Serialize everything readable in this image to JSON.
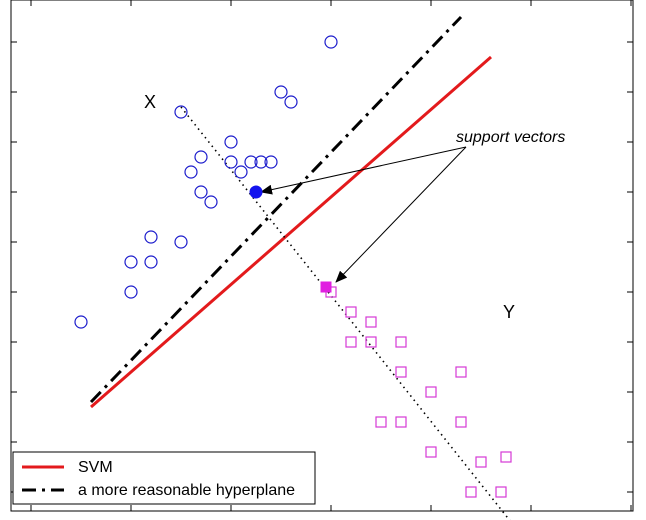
{
  "chart_data": {
    "type": "scatter",
    "title": "",
    "xlabel": "",
    "ylabel": "",
    "xlim": [
      0,
      6
    ],
    "ylim": [
      0,
      5
    ],
    "grid": false,
    "legend_position": "bottom-left",
    "class_labels": [
      {
        "text": "X",
        "x": 1.13,
        "y": 3.9
      },
      {
        "text": "Y",
        "x": 4.72,
        "y": 1.8
      }
    ],
    "annotation": {
      "text": "support vectors",
      "x": 4.25,
      "y": 3.55
    },
    "arrows": [
      {
        "from": [
          4.35,
          3.45
        ],
        "to": [
          2.3,
          3.0
        ]
      },
      {
        "from": [
          4.35,
          3.45
        ],
        "to": [
          3.05,
          2.1
        ]
      }
    ],
    "series": [
      {
        "name": "class X",
        "marker": "circle-open",
        "color": "#1c1ccc",
        "points": [
          [
            0.5,
            1.7
          ],
          [
            1.0,
            2.0
          ],
          [
            1.0,
            2.3
          ],
          [
            1.2,
            2.3
          ],
          [
            1.2,
            2.55
          ],
          [
            1.5,
            2.5
          ],
          [
            1.6,
            3.2
          ],
          [
            1.7,
            3.35
          ],
          [
            1.7,
            3.0
          ],
          [
            1.8,
            2.9
          ],
          [
            2.0,
            3.5
          ],
          [
            2.0,
            3.3
          ],
          [
            2.1,
            3.2
          ],
          [
            2.2,
            3.3
          ],
          [
            2.3,
            3.3
          ],
          [
            2.4,
            3.3
          ],
          [
            1.5,
            3.8
          ],
          [
            2.5,
            4.0
          ],
          [
            2.6,
            3.9
          ],
          [
            3.0,
            4.5
          ]
        ]
      },
      {
        "name": "class Y",
        "marker": "square-open",
        "color": "#d63ad6",
        "points": [
          [
            3.0,
            2.0
          ],
          [
            3.2,
            1.8
          ],
          [
            3.4,
            1.7
          ],
          [
            3.2,
            1.5
          ],
          [
            3.4,
            1.5
          ],
          [
            3.7,
            1.5
          ],
          [
            3.7,
            1.2
          ],
          [
            4.0,
            1.0
          ],
          [
            4.3,
            1.2
          ],
          [
            3.5,
            0.7
          ],
          [
            3.7,
            0.7
          ],
          [
            4.3,
            0.7
          ],
          [
            4.0,
            0.4
          ],
          [
            4.5,
            0.3
          ],
          [
            4.75,
            0.35
          ],
          [
            4.4,
            0.0
          ],
          [
            4.7,
            0.0
          ]
        ]
      },
      {
        "name": "support vector X",
        "marker": "circle-filled",
        "color": "#1414ee",
        "points": [
          [
            2.25,
            3.0
          ]
        ]
      },
      {
        "name": "support vector Y",
        "marker": "square-filled",
        "color": "#e01ee0",
        "points": [
          [
            2.95,
            2.05
          ]
        ]
      },
      {
        "name": "SVM",
        "type": "line",
        "style": "solid",
        "color": "#e31a1c",
        "points": [
          [
            0.6,
            0.85
          ],
          [
            4.6,
            4.35
          ]
        ]
      },
      {
        "name": "a more reasonable hyperplane",
        "type": "line",
        "style": "dash-dot",
        "color": "#000000",
        "points": [
          [
            0.6,
            0.9
          ],
          [
            4.3,
            4.75
          ]
        ]
      },
      {
        "name": "margin line",
        "type": "line",
        "style": "dotted",
        "color": "#000000",
        "points": [
          [
            1.5,
            3.85
          ],
          [
            4.8,
            -0.3
          ]
        ]
      }
    ],
    "legend": [
      {
        "label": "SVM",
        "style": "solid",
        "color": "#e31a1c"
      },
      {
        "label": "a more reasonable hyperplane",
        "style": "dash-dot",
        "color": "#000000"
      }
    ]
  }
}
